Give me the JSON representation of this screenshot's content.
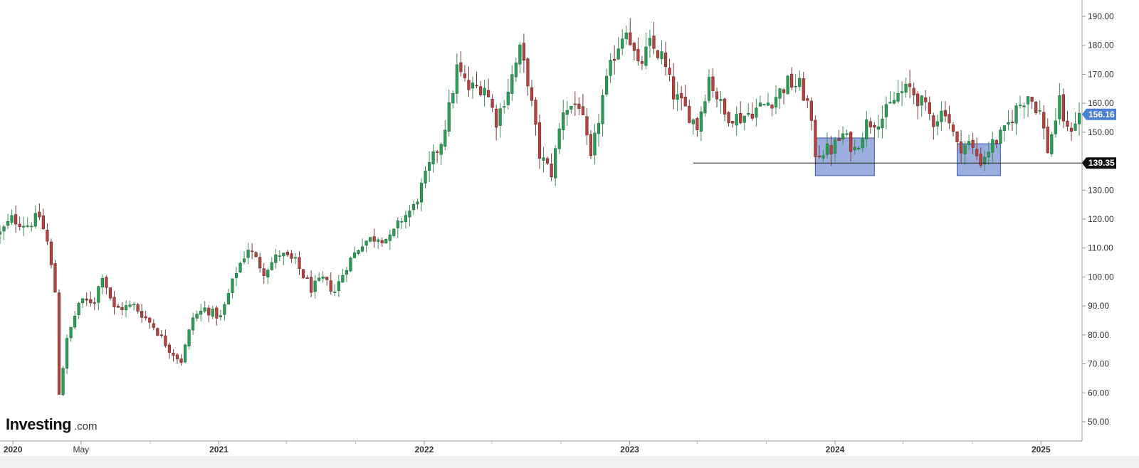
{
  "logo": {
    "main": "Investing",
    "sub": ".com"
  },
  "colors": {
    "up": "#2e9b57",
    "down": "#b5433f",
    "zone_fill": "#7b93d2",
    "zone_stroke": "#3355aa",
    "axis": "#999999",
    "current_tag": "#4a7fd6",
    "level_tag": "#111111"
  },
  "current_price": {
    "label": "156.16",
    "value": 156.16
  },
  "support_level": {
    "label": "139.35",
    "value": 139.35
  },
  "chart_data": {
    "type": "candlestick",
    "timeframe": "weekly",
    "x_range": [
      "2019-12-09",
      "2025-03-15"
    ],
    "ylim": [
      45,
      195
    ],
    "y_ticks": [
      {
        "value": 50,
        "label": "50.00"
      },
      {
        "value": 60,
        "label": "60.00"
      },
      {
        "value": 70,
        "label": "70.00"
      },
      {
        "value": 80,
        "label": "80.00"
      },
      {
        "value": 90,
        "label": "90.00"
      },
      {
        "value": 100,
        "label": "100.00"
      },
      {
        "value": 110,
        "label": "110.00"
      },
      {
        "value": 120,
        "label": "120.00"
      },
      {
        "value": 130,
        "label": "130.00"
      },
      {
        "value": 140,
        "label": "140.00"
      },
      {
        "value": 150,
        "label": "150.00"
      },
      {
        "value": 160,
        "label": "160.00"
      },
      {
        "value": 170,
        "label": "170.00"
      },
      {
        "value": 180,
        "label": "180.00"
      },
      {
        "value": 190,
        "label": "190.00"
      }
    ],
    "x_labels": [
      {
        "date": "2020-01-01",
        "label": "2020",
        "bold": true
      },
      {
        "date": "2020-05-01",
        "label": "May",
        "bold": false
      },
      {
        "date": "2021-01-01",
        "label": "2021",
        "bold": true
      },
      {
        "date": "2022-01-01",
        "label": "2022",
        "bold": true
      },
      {
        "date": "2023-01-01",
        "label": "2023",
        "bold": true
      },
      {
        "date": "2024-01-01",
        "label": "2024",
        "bold": true
      },
      {
        "date": "2025-01-01",
        "label": "2025",
        "bold": true
      }
    ],
    "minor_x_ticks": [
      "2020-09-01",
      "2021-05-01",
      "2021-09-01",
      "2022-05-01",
      "2022-09-01",
      "2023-05-01",
      "2023-09-01",
      "2024-05-01",
      "2024-09-01"
    ],
    "close_path": [
      [
        "2019-12-09",
        115
      ],
      [
        "2019-12-30",
        120
      ],
      [
        "2020-01-27",
        118
      ],
      [
        "2020-02-17",
        121
      ],
      [
        "2020-03-02",
        112
      ],
      [
        "2020-03-16",
        95
      ],
      [
        "2020-03-23",
        60
      ],
      [
        "2020-04-06",
        78
      ],
      [
        "2020-04-27",
        91
      ],
      [
        "2020-05-25",
        92
      ],
      [
        "2020-06-08",
        101
      ],
      [
        "2020-06-29",
        89
      ],
      [
        "2020-08-03",
        90
      ],
      [
        "2020-09-07",
        83
      ],
      [
        "2020-10-05",
        75
      ],
      [
        "2020-10-26",
        71
      ],
      [
        "2020-11-16",
        86
      ],
      [
        "2020-12-07",
        89
      ],
      [
        "2021-01-04",
        86
      ],
      [
        "2021-02-01",
        102
      ],
      [
        "2021-02-22",
        110
      ],
      [
        "2021-03-22",
        102
      ],
      [
        "2021-04-19",
        108
      ],
      [
        "2021-05-17",
        105
      ],
      [
        "2021-06-14",
        96
      ],
      [
        "2021-07-05",
        99
      ],
      [
        "2021-07-26",
        95
      ],
      [
        "2021-08-16",
        104
      ],
      [
        "2021-09-13",
        112
      ],
      [
        "2021-10-11",
        114
      ],
      [
        "2021-11-01",
        113
      ],
      [
        "2021-11-22",
        120
      ],
      [
        "2021-12-13",
        124
      ],
      [
        "2022-01-10",
        138
      ],
      [
        "2022-01-31",
        147
      ],
      [
        "2022-02-14",
        158
      ],
      [
        "2022-02-28",
        172
      ],
      [
        "2022-03-21",
        165
      ],
      [
        "2022-04-18",
        166
      ],
      [
        "2022-05-09",
        154
      ],
      [
        "2022-05-30",
        165
      ],
      [
        "2022-06-20",
        178
      ],
      [
        "2022-07-04",
        168
      ],
      [
        "2022-07-25",
        142
      ],
      [
        "2022-08-15",
        136
      ],
      [
        "2022-09-05",
        158
      ],
      [
        "2022-10-03",
        160
      ],
      [
        "2022-10-24",
        140
      ],
      [
        "2022-11-14",
        162
      ],
      [
        "2022-12-05",
        177
      ],
      [
        "2022-12-26",
        187
      ],
      [
        "2023-01-16",
        172
      ],
      [
        "2023-02-06",
        180
      ],
      [
        "2023-02-27",
        176
      ],
      [
        "2023-03-20",
        163
      ],
      [
        "2023-04-10",
        158
      ],
      [
        "2023-05-01",
        152
      ],
      [
        "2023-05-22",
        169
      ],
      [
        "2023-06-19",
        156
      ],
      [
        "2023-07-17",
        155
      ],
      [
        "2023-08-14",
        158
      ],
      [
        "2023-09-11",
        161
      ],
      [
        "2023-10-09",
        167
      ],
      [
        "2023-10-30",
        166
      ],
      [
        "2023-11-13",
        160
      ],
      [
        "2023-11-27",
        143
      ],
      [
        "2023-12-25",
        144
      ],
      [
        "2024-01-15",
        149
      ],
      [
        "2024-02-05",
        144
      ],
      [
        "2024-02-26",
        153
      ],
      [
        "2024-03-25",
        155
      ],
      [
        "2024-04-22",
        163
      ],
      [
        "2024-05-13",
        165
      ],
      [
        "2024-06-03",
        160
      ],
      [
        "2024-06-24",
        154
      ],
      [
        "2024-07-15",
        158
      ],
      [
        "2024-08-05",
        145
      ],
      [
        "2024-08-26",
        146
      ],
      [
        "2024-09-16",
        140
      ],
      [
        "2024-10-07",
        146
      ],
      [
        "2024-10-28",
        150
      ],
      [
        "2024-11-18",
        158
      ],
      [
        "2024-12-09",
        163
      ],
      [
        "2024-12-30",
        157
      ],
      [
        "2025-01-13",
        144
      ],
      [
        "2025-02-03",
        160
      ],
      [
        "2025-02-17",
        150
      ],
      [
        "2025-03-10",
        156
      ]
    ],
    "annotations": {
      "horizontal_line": {
        "value": 139.35,
        "from": "2023-04-24",
        "to": "2025-03-17"
      },
      "zones": [
        {
          "from": "2023-11-27",
          "to": "2024-03-11",
          "low": 135,
          "high": 148
        },
        {
          "from": "2024-08-05",
          "to": "2024-10-21",
          "low": 135,
          "high": 146
        }
      ]
    }
  }
}
